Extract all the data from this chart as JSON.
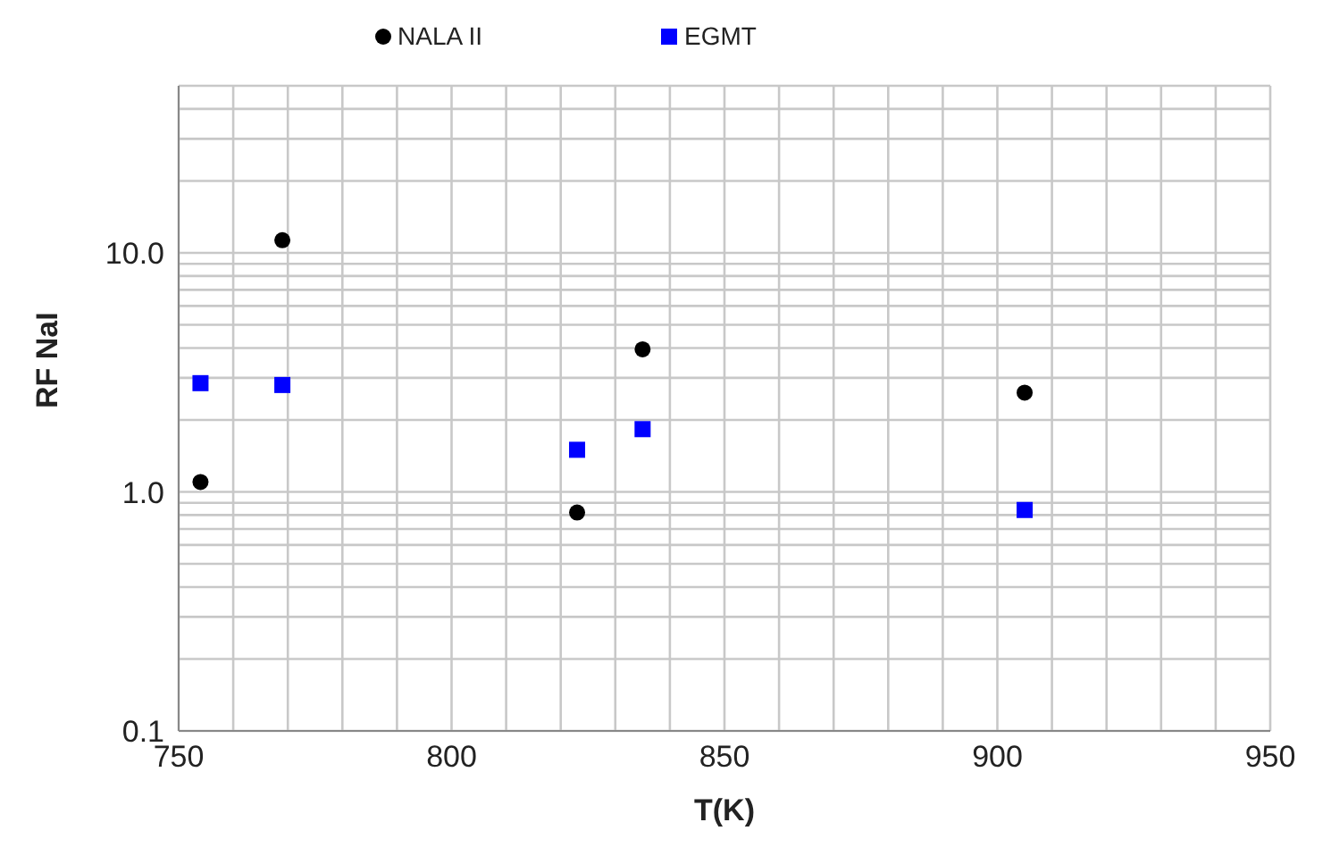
{
  "chart_data": {
    "type": "scatter",
    "xlabel": "T(K)",
    "ylabel": "RF NaI",
    "log": "y",
    "grid": true,
    "legend": "top",
    "xlim": [
      750,
      950
    ],
    "xticks": [
      750,
      {
        "value": 760,
        "label": null
      },
      {
        "value": 770,
        "label": null
      },
      {
        "value": 780,
        "label": null
      },
      {
        "value": 790,
        "label": null
      },
      800,
      {
        "value": 810,
        "label": null
      },
      {
        "value": 820,
        "label": null
      },
      {
        "value": 830,
        "label": null
      },
      {
        "value": 840,
        "label": null
      },
      850,
      {
        "value": 860,
        "label": null
      },
      {
        "value": 870,
        "label": null
      },
      {
        "value": 880,
        "label": null
      },
      {
        "value": 890,
        "label": null
      },
      900,
      {
        "value": 910,
        "label": null
      },
      {
        "value": 920,
        "label": null
      },
      {
        "value": 930,
        "label": null
      },
      {
        "value": 940,
        "label": null
      },
      950
    ],
    "ylim": [
      0.1,
      50
    ],
    "yticks": [
      {
        "value": 0.1,
        "label": "0.1"
      },
      {
        "value": 0.2,
        "label": null
      },
      {
        "value": 0.3,
        "label": null
      },
      {
        "value": 0.4,
        "label": null
      },
      {
        "value": 0.5,
        "label": null
      },
      {
        "value": 0.6,
        "label": null
      },
      {
        "value": 0.7,
        "label": null
      },
      {
        "value": 0.8,
        "label": null
      },
      {
        "value": 0.9,
        "label": null
      },
      {
        "value": 1,
        "label": "1.0"
      },
      {
        "value": 2,
        "label": null
      },
      {
        "value": 3,
        "label": null
      },
      {
        "value": 4,
        "label": null
      },
      {
        "value": 5,
        "label": null
      },
      {
        "value": 6,
        "label": null
      },
      {
        "value": 7,
        "label": null
      },
      {
        "value": 8,
        "label": null
      },
      {
        "value": 9,
        "label": null
      },
      {
        "value": 10,
        "label": "10.0"
      },
      {
        "value": 20,
        "label": null
      },
      {
        "value": 30,
        "label": null
      },
      {
        "value": 40,
        "label": null
      },
      {
        "value": 50,
        "label": null
      }
    ],
    "series": [
      {
        "name": "NALA II",
        "color": "#000000",
        "marker": "circle",
        "x": [
          754,
          769,
          823,
          835,
          905
        ],
        "values": [
          1.1,
          11.3,
          0.82,
          3.95,
          2.6
        ]
      },
      {
        "name": "EGMT",
        "color": "#0000ff",
        "marker": "square",
        "x": [
          754,
          769,
          823,
          835,
          905
        ],
        "values": [
          2.85,
          2.8,
          1.5,
          1.83,
          0.84
        ]
      }
    ]
  }
}
